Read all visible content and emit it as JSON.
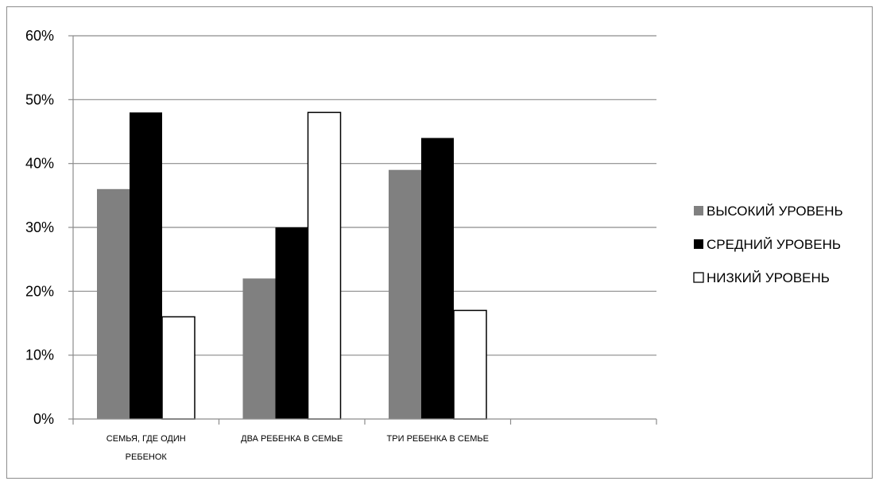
{
  "chart_data": {
    "type": "bar",
    "categories": [
      "СЕМЬЯ, ГДЕ ОДИН РЕБЕНОК",
      "ДВА РЕБЕНКА В СЕМЬЕ",
      "ТРИ РЕБЕНКА В СЕМЬЕ",
      ""
    ],
    "category_lines": [
      [
        "СЕМЬЯ, ГДЕ ОДИН",
        "РЕБЕНОК"
      ],
      [
        "ДВА РЕБЕНКА В СЕМЬЕ"
      ],
      [
        "ТРИ РЕБЕНКА В СЕМЬЕ"
      ],
      []
    ],
    "series": [
      {
        "name": "ВЫСОКИЙ УРОВЕНЬ",
        "color": "#808080",
        "values": [
          36,
          22,
          39,
          null
        ]
      },
      {
        "name": "СРЕДНИЙ УРОВЕНЬ",
        "color": "#000000",
        "values": [
          48,
          30,
          44,
          null
        ]
      },
      {
        "name": "НИЗКИЙ УРОВЕНЬ",
        "color": "#ffffff",
        "values": [
          16,
          48,
          17,
          null
        ]
      }
    ],
    "yticks": [
      "0%",
      "10%",
      "20%",
      "30%",
      "40%",
      "50%",
      "60%"
    ],
    "ylim": [
      0,
      60
    ],
    "grid": true,
    "legend_position": "right"
  }
}
